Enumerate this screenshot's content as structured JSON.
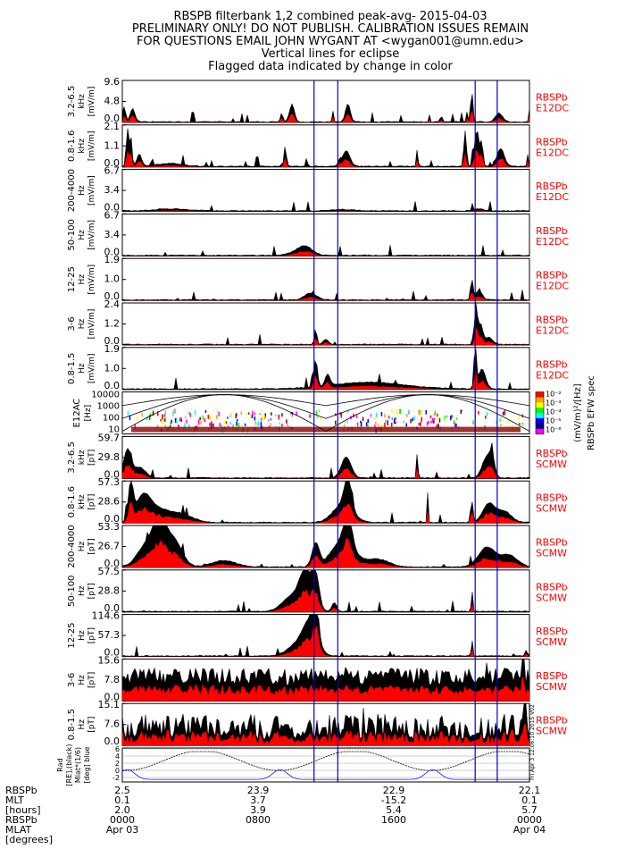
{
  "header": {
    "lines": [
      "RBSPB filterbank 1,2 combined peak-avg- 2015-04-03",
      "PRELIMINARY ONLY! DO NOT PUBLISH. CALIBRATION ISSUES REMAIN",
      "FOR QUESTIONS EMAIL JOHN WYGANT AT <wygan001@umn.edu>",
      "Vertical lines for eclipse",
      "Flagged data indicated by change in color"
    ]
  },
  "colors": {
    "peak": "#000000",
    "avg": "#ff0000",
    "eclipse": "#0000cc",
    "trace": "#3333ff",
    "label": "#ff0000"
  },
  "chart_data": {
    "type": "stacked-timeseries",
    "x_range_hours": [
      0,
      24
    ],
    "eclipse_hours": [
      11.3,
      12.7,
      20.8,
      22.1
    ],
    "panels": [
      {
        "id": "e1",
        "band": "3.2-6.5",
        "unit": "kHz",
        "ylabel": "[mV/m]",
        "ticks": [
          "9.6",
          "4.8",
          "0.0"
        ],
        "max": 9.6,
        "source": [
          "RBSPb",
          "E12DC"
        ],
        "features": [
          [
            0.15,
            0.05,
            7.5
          ],
          [
            0.6,
            0.2,
            3.0
          ],
          [
            9.4,
            0.1,
            2.0
          ],
          [
            10.0,
            0.2,
            4.0
          ],
          [
            12.4,
            0.05,
            3.0
          ],
          [
            13.3,
            0.2,
            4.2
          ],
          [
            18.1,
            0.05,
            1.5
          ],
          [
            18.8,
            0.1,
            1.2
          ],
          [
            20.3,
            0.05,
            2.5
          ],
          [
            20.6,
            0.1,
            7.0
          ],
          [
            22.2,
            0.3,
            2.0
          ],
          [
            24.0,
            0.05,
            3.0
          ]
        ]
      },
      {
        "id": "e2",
        "band": "0.8-1.6",
        "unit": "kHz",
        "ylabel": "[mV/m]",
        "ticks": [
          "2.1",
          "1.1",
          "0.0"
        ],
        "max": 2.1,
        "source": [
          "RBSPb",
          "E12DC"
        ],
        "features": [
          [
            0.3,
            0.1,
            1.9
          ],
          [
            0.5,
            0.1,
            1.5
          ],
          [
            1.0,
            0.2,
            0.6
          ],
          [
            2.8,
            1.0,
            0.15
          ],
          [
            9.6,
            0.1,
            1.0
          ],
          [
            12.8,
            0.1,
            0.3
          ],
          [
            13.2,
            0.3,
            0.8
          ],
          [
            17.4,
            0.05,
            1.2
          ],
          [
            20.2,
            0.1,
            1.8
          ],
          [
            20.9,
            0.2,
            1.8
          ],
          [
            21.2,
            0.1,
            1.1
          ],
          [
            22.3,
            0.3,
            0.9
          ],
          [
            23.9,
            0.05,
            0.6
          ]
        ]
      },
      {
        "id": "e3",
        "band": "200-4000",
        "unit": "Hz",
        "ylabel": "[mV/m]",
        "ticks": [
          "6.7",
          "3.4",
          "0.0"
        ],
        "max": 6.7,
        "source": [
          "RBSPb",
          "E12DC"
        ],
        "features": [
          [
            3.0,
            1.5,
            0.3
          ],
          [
            13.0,
            1.0,
            0.2
          ],
          [
            21.0,
            0.5,
            0.3
          ]
        ]
      },
      {
        "id": "e4",
        "band": "50-100",
        "unit": "Hz",
        "ylabel": "[mV/m]",
        "ticks": [
          "6.7",
          "3.4",
          "0.0"
        ],
        "max": 6.7,
        "source": [
          "RBSPb",
          "E12DC"
        ],
        "features": [
          [
            10.8,
            0.6,
            1.1
          ],
          [
            10.4,
            0.8,
            0.5
          ]
        ]
      },
      {
        "id": "e5",
        "band": "12-25",
        "unit": "Hz",
        "ylabel": "[mV/m]",
        "ticks": [
          "1.9",
          "1.0",
          "0.0"
        ],
        "max": 1.9,
        "source": [
          "RBSPb",
          "E12DC"
        ],
        "features": [
          [
            11.1,
            0.5,
            0.3
          ],
          [
            20.6,
            0.1,
            0.9
          ],
          [
            21.0,
            0.3,
            0.4
          ]
        ]
      },
      {
        "id": "e6",
        "band": "3-6",
        "unit": "Hz",
        "ylabel": "[mV/m]",
        "ticks": [
          "2.4",
          "1.2",
          "0.0"
        ],
        "max": 2.4,
        "source": [
          "RBSPb",
          "E12DC"
        ],
        "features": [
          [
            11.4,
            0.1,
            0.9
          ],
          [
            12.0,
            0.2,
            0.3
          ],
          [
            20.85,
            0.1,
            2.3
          ],
          [
            21.1,
            0.2,
            1.2
          ],
          [
            21.6,
            0.3,
            0.4
          ]
        ]
      },
      {
        "id": "e7",
        "band": "0.8-1.5",
        "unit": "Hz",
        "ylabel": "[mV/m]",
        "ticks": [
          "1.9",
          "1.0",
          "0.0"
        ],
        "max": 1.9,
        "source": [
          "RBSPb",
          "E12DC"
        ],
        "features": [
          [
            11.4,
            0.15,
            1.2
          ],
          [
            12.1,
            0.2,
            0.5
          ],
          [
            14.5,
            3.0,
            0.3
          ],
          [
            20.8,
            0.1,
            1.9
          ],
          [
            21.2,
            0.3,
            0.9
          ]
        ]
      },
      {
        "id": "b1",
        "band": "3.2-6.5",
        "unit": "kHz",
        "ylabel": "[pT]",
        "ticks": [
          "59.7",
          "29.8",
          "0.0"
        ],
        "max": 59.7,
        "source": [
          "RBSPb",
          "SCMW"
        ],
        "features": [
          [
            0.3,
            0.3,
            40
          ],
          [
            1.0,
            0.5,
            15
          ],
          [
            13.2,
            0.4,
            30
          ],
          [
            17.4,
            0.05,
            50
          ],
          [
            21.5,
            0.4,
            30
          ],
          [
            21.8,
            0.2,
            20
          ]
        ]
      },
      {
        "id": "b2",
        "band": "0.8-1.6",
        "unit": "kHz",
        "ylabel": "[pT]",
        "ticks": [
          "57.3",
          "28.6",
          "0.0"
        ],
        "max": 57.3,
        "source": [
          "RBSPb",
          "SCMW"
        ],
        "features": [
          [
            0.5,
            0.2,
            50
          ],
          [
            1.2,
            0.6,
            30
          ],
          [
            2.0,
            1.0,
            18
          ],
          [
            3.5,
            1.0,
            10
          ],
          [
            13.0,
            0.8,
            25
          ],
          [
            13.3,
            0.3,
            40
          ],
          [
            18.0,
            0.05,
            40
          ],
          [
            20.6,
            0.1,
            30
          ],
          [
            21.6,
            0.5,
            25
          ],
          [
            22.5,
            0.6,
            15
          ]
        ]
      },
      {
        "id": "b3",
        "band": "200-4000",
        "unit": "Hz",
        "ylabel": "[pT]",
        "ticks": [
          "53.3",
          "26.7",
          "0.0"
        ],
        "max": 53.3,
        "source": [
          "RBSPb",
          "SCMW"
        ],
        "features": [
          [
            1.5,
            0.8,
            30
          ],
          [
            2.2,
            0.5,
            45
          ],
          [
            3.0,
            0.7,
            35
          ],
          [
            6.0,
            1.0,
            8
          ],
          [
            11.4,
            0.3,
            30
          ],
          [
            13.0,
            0.9,
            35
          ],
          [
            13.3,
            0.3,
            45
          ],
          [
            15.0,
            1.0,
            10
          ],
          [
            21.5,
            0.7,
            25
          ],
          [
            22.8,
            0.7,
            15
          ]
        ]
      },
      {
        "id": "b4",
        "band": "50-100",
        "unit": "Hz",
        "ylabel": "[pT]",
        "ticks": [
          "57.5",
          "28.8",
          "0.0"
        ],
        "max": 57.5,
        "source": [
          "RBSPb",
          "SCMW"
        ],
        "features": [
          [
            10.8,
            0.5,
            50
          ],
          [
            11.4,
            0.3,
            45
          ],
          [
            10.0,
            0.8,
            20
          ],
          [
            12.5,
            0.2,
            12
          ],
          [
            20.6,
            0.05,
            40
          ]
        ]
      },
      {
        "id": "b5",
        "band": "12-25",
        "unit": "Hz",
        "ylabel": "[pT]",
        "ticks": [
          "114.6",
          "57.3",
          "0.0"
        ],
        "max": 114.6,
        "source": [
          "RBSPb",
          "SCMW"
        ],
        "features": [
          [
            11.1,
            0.6,
            90
          ],
          [
            11.4,
            0.2,
            110
          ],
          [
            10.3,
            0.8,
            30
          ],
          [
            20.6,
            0.05,
            60
          ],
          [
            23.8,
            0.1,
            15
          ]
        ]
      },
      {
        "id": "b6",
        "band": "3-6",
        "unit": "Hz",
        "ylabel": "[pT]",
        "ticks": [
          "15.6",
          "7.8",
          "0.0"
        ],
        "max": 15.6,
        "source": [
          "RBSPb",
          "SCMW"
        ],
        "baseline": 9.0,
        "noise": 3.2,
        "features": [
          [
            23.6,
            0.1,
            13
          ]
        ]
      },
      {
        "id": "b7",
        "band": "0.8-1.5",
        "unit": "Hz",
        "ylabel": "[pT]",
        "ticks": [
          "15.1",
          "7.6",
          "0.0"
        ],
        "max": 15.1,
        "source": [
          "RBSPb",
          "SCMW"
        ],
        "baseline": 6.5,
        "noise": 4.5,
        "features": [
          [
            23.7,
            0.1,
            14
          ]
        ]
      }
    ],
    "spec": {
      "ylabel": "E12AC",
      "unit": "[Hz]",
      "ticks": [
        "10000",
        "1000",
        "100",
        "10"
      ],
      "colorbar_ticks": [
        "10⁻²",
        "10⁻³",
        "10⁻⁴",
        "10⁻⁵",
        "10⁻⁶"
      ],
      "colorbar_label": "(mV/m)²/[Hz]",
      "title": "RBSPb EFW spec"
    },
    "orbit": {
      "ylabel_lines": [
        "Rad",
        "[RE],(black)",
        "Mlat*(1/6)",
        "[deg] blue"
      ],
      "ticks": [
        "6",
        "4",
        "2",
        "0",
        "-2"
      ],
      "stamp": "Fri Apr 3 12:06:10 2015 V02"
    },
    "xaxis": {
      "row_labels": [
        "RBSPb",
        "MLT",
        "[hours]",
        "RBSPb",
        "MLAT",
        "[degrees]"
      ],
      "columns": [
        {
          "hour": 0,
          "rad": "2.5",
          "mlt": "0.1",
          "mlat": "2.0",
          "time": "0000",
          "date": "Apr 03"
        },
        {
          "hour": 8,
          "rad": "23.9",
          "mlt": "3.7",
          "mlat": "3.9",
          "time": "0800",
          "date": ""
        },
        {
          "hour": 16,
          "rad": "22.9",
          "mlt": "-15.2",
          "mlat": "5.4",
          "time": "1600",
          "date": ""
        },
        {
          "hour": 24,
          "rad": "22.1",
          "mlt": "0.1",
          "mlat": "5.7",
          "time": "0000",
          "date": "Apr 04"
        }
      ]
    }
  }
}
